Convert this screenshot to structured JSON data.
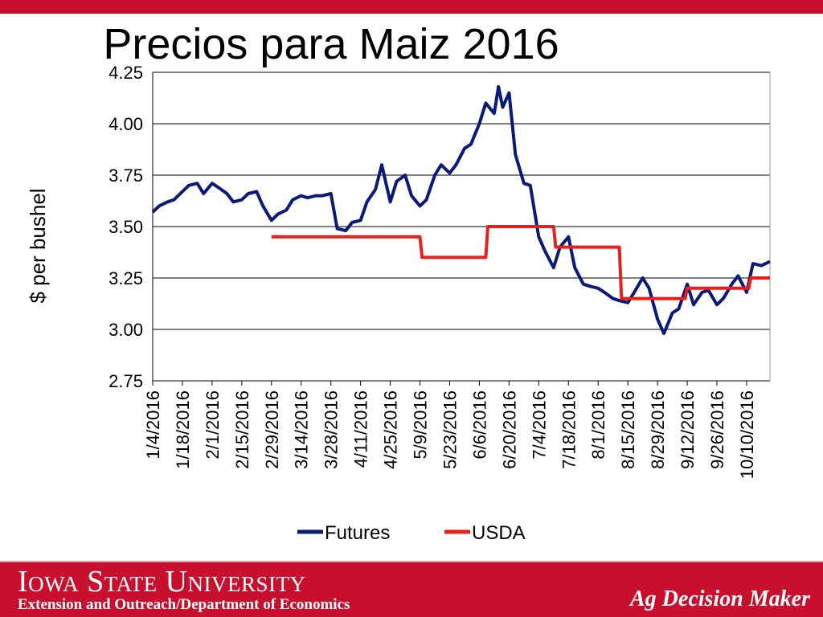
{
  "page": {
    "title": "Precios para Maiz 2016",
    "footer": {
      "logo": "Iowa State University",
      "subtitle": "Extension and Outreach/Department of Economics",
      "brand": "Ag Decision Maker"
    },
    "colors": {
      "accent": "#c8102e",
      "futures": "#0a1a7a",
      "usda": "#e8201c"
    }
  },
  "chart_data": {
    "type": "line",
    "title": "",
    "xlabel": "",
    "ylabel": "$ per bushel",
    "ylim": [
      2.75,
      4.25
    ],
    "yticks": [
      "4.25",
      "4.00",
      "3.75",
      "3.50",
      "3.25",
      "3.00",
      "2.75"
    ],
    "grid": "horizontal",
    "legend_position": "bottom",
    "x_ticks": [
      "1/4/2016",
      "1/18/2016",
      "2/1/2016",
      "2/15/2016",
      "2/29/2016",
      "3/14/2016",
      "3/28/2016",
      "4/11/2016",
      "4/25/2016",
      "5/9/2016",
      "5/23/2016",
      "6/6/2016",
      "6/20/2016",
      "7/4/2016",
      "7/18/2016",
      "8/1/2016",
      "8/15/2016",
      "8/29/2016",
      "9/12/2016",
      "9/26/2016",
      "10/10/2016"
    ],
    "x_range": [
      "2016-01-04",
      "2016-10-21"
    ],
    "series": [
      {
        "name": "Futures",
        "color": "#0a1a7a",
        "x": [
          "2016-01-04",
          "2016-01-07",
          "2016-01-11",
          "2016-01-14",
          "2016-01-18",
          "2016-01-21",
          "2016-01-25",
          "2016-01-28",
          "2016-02-01",
          "2016-02-04",
          "2016-02-08",
          "2016-02-11",
          "2016-02-15",
          "2016-02-18",
          "2016-02-22",
          "2016-02-25",
          "2016-02-29",
          "2016-03-03",
          "2016-03-07",
          "2016-03-10",
          "2016-03-14",
          "2016-03-17",
          "2016-03-21",
          "2016-03-24",
          "2016-03-28",
          "2016-03-31",
          "2016-04-04",
          "2016-04-07",
          "2016-04-11",
          "2016-04-14",
          "2016-04-18",
          "2016-04-21",
          "2016-04-25",
          "2016-04-28",
          "2016-05-02",
          "2016-05-05",
          "2016-05-09",
          "2016-05-12",
          "2016-05-16",
          "2016-05-19",
          "2016-05-23",
          "2016-05-26",
          "2016-05-30",
          "2016-06-02",
          "2016-06-06",
          "2016-06-09",
          "2016-06-13",
          "2016-06-15",
          "2016-06-17",
          "2016-06-20",
          "2016-06-23",
          "2016-06-27",
          "2016-06-30",
          "2016-07-04",
          "2016-07-07",
          "2016-07-11",
          "2016-07-14",
          "2016-07-18",
          "2016-07-21",
          "2016-07-25",
          "2016-07-28",
          "2016-08-01",
          "2016-08-04",
          "2016-08-08",
          "2016-08-11",
          "2016-08-15",
          "2016-08-18",
          "2016-08-22",
          "2016-08-25",
          "2016-08-29",
          "2016-09-01",
          "2016-09-05",
          "2016-09-08",
          "2016-09-12",
          "2016-09-15",
          "2016-09-19",
          "2016-09-22",
          "2016-09-26",
          "2016-09-29",
          "2016-10-03",
          "2016-10-06",
          "2016-10-10",
          "2016-10-13",
          "2016-10-17",
          "2016-10-21"
        ],
        "values": [
          3.57,
          3.6,
          3.62,
          3.63,
          3.67,
          3.7,
          3.71,
          3.66,
          3.71,
          3.69,
          3.66,
          3.62,
          3.63,
          3.66,
          3.67,
          3.6,
          3.53,
          3.56,
          3.58,
          3.63,
          3.65,
          3.64,
          3.65,
          3.65,
          3.66,
          3.49,
          3.48,
          3.52,
          3.53,
          3.62,
          3.68,
          3.8,
          3.62,
          3.72,
          3.75,
          3.65,
          3.6,
          3.63,
          3.75,
          3.8,
          3.76,
          3.8,
          3.88,
          3.9,
          4.0,
          4.1,
          4.05,
          4.18,
          4.08,
          4.15,
          3.85,
          3.71,
          3.7,
          3.45,
          3.38,
          3.3,
          3.4,
          3.45,
          3.3,
          3.22,
          3.21,
          3.2,
          3.18,
          3.15,
          3.14,
          3.13,
          3.18,
          3.25,
          3.2,
          3.05,
          2.98,
          3.08,
          3.1,
          3.22,
          3.12,
          3.18,
          3.19,
          3.12,
          3.15,
          3.22,
          3.26,
          3.18,
          3.32,
          3.31,
          3.33
        ]
      },
      {
        "name": "USDA",
        "color": "#e8201c",
        "x": [
          "2016-02-29",
          "2016-05-09",
          "2016-05-10",
          "2016-06-09",
          "2016-06-10",
          "2016-07-11",
          "2016-07-12",
          "2016-08-11",
          "2016-08-12",
          "2016-09-11",
          "2016-09-12",
          "2016-10-11",
          "2016-10-12",
          "2016-10-21"
        ],
        "values": [
          3.45,
          3.45,
          3.35,
          3.35,
          3.5,
          3.5,
          3.4,
          3.4,
          3.15,
          3.15,
          3.2,
          3.2,
          3.25,
          3.25
        ]
      }
    ]
  }
}
